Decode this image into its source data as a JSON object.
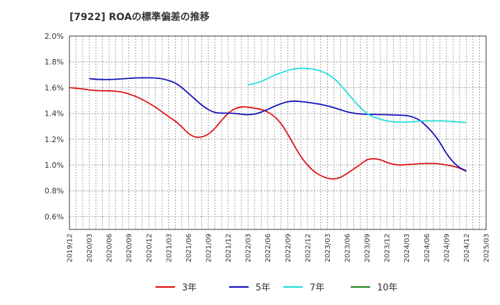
{
  "chart_data": {
    "type": "line",
    "title": "[7922]  ROAの標準偏差の推移",
    "xlabel": "",
    "ylabel": "",
    "ylim": [
      0.5,
      2.0
    ],
    "y_ticks": [
      "2.0%",
      "1.8%",
      "1.6%",
      "1.4%",
      "1.2%",
      "1.0%",
      "0.8%",
      "0.6%"
    ],
    "x_ticks": [
      "2019/12",
      "2020/03",
      "2020/06",
      "2020/09",
      "2020/12",
      "2021/03",
      "2021/06",
      "2021/09",
      "2021/12",
      "2022/03",
      "2022/06",
      "2022/09",
      "2022/12",
      "2023/03",
      "2023/06",
      "2023/09",
      "2023/12",
      "2024/03",
      "2024/06",
      "2024/09",
      "2024/12",
      "2025/03"
    ],
    "grid": true,
    "legend_position": "bottom",
    "series": [
      {
        "name": "3年",
        "color": "#dd1111",
        "points": [
          [
            "2019/12",
            1.6
          ],
          [
            "2020/01",
            1.595
          ],
          [
            "2020/02",
            1.59
          ],
          [
            "2020/03",
            1.582
          ],
          [
            "2020/04",
            1.578
          ],
          [
            "2020/05",
            1.576
          ],
          [
            "2020/06",
            1.575
          ],
          [
            "2020/07",
            1.572
          ],
          [
            "2020/08",
            1.565
          ],
          [
            "2020/09",
            1.55
          ],
          [
            "2020/10",
            1.532
          ],
          [
            "2020/11",
            1.508
          ],
          [
            "2020/12",
            1.48
          ],
          [
            "2021/01",
            1.448
          ],
          [
            "2021/02",
            1.412
          ],
          [
            "2021/03",
            1.375
          ],
          [
            "2021/04",
            1.34
          ],
          [
            "2021/05",
            1.295
          ],
          [
            "2021/06",
            1.245
          ],
          [
            "2021/07",
            1.218
          ],
          [
            "2021/08",
            1.218
          ],
          [
            "2021/09",
            1.24
          ],
          [
            "2021/10",
            1.285
          ],
          [
            "2021/11",
            1.345
          ],
          [
            "2021/12",
            1.4
          ],
          [
            "2022/01",
            1.435
          ],
          [
            "2022/02",
            1.45
          ],
          [
            "2022/03",
            1.448
          ],
          [
            "2022/04",
            1.44
          ],
          [
            "2022/05",
            1.43
          ],
          [
            "2022/06",
            1.41
          ],
          [
            "2022/07",
            1.375
          ],
          [
            "2022/08",
            1.32
          ],
          [
            "2022/09",
            1.24
          ],
          [
            "2022/10",
            1.15
          ],
          [
            "2022/11",
            1.065
          ],
          [
            "2022/12",
            1.0
          ],
          [
            "2023/01",
            0.95
          ],
          [
            "2023/02",
            0.918
          ],
          [
            "2023/03",
            0.898
          ],
          [
            "2023/04",
            0.892
          ],
          [
            "2023/05",
            0.905
          ],
          [
            "2023/06",
            0.935
          ],
          [
            "2023/07",
            0.97
          ],
          [
            "2023/08",
            1.005
          ],
          [
            "2023/09",
            1.04
          ],
          [
            "2023/10",
            1.048
          ],
          [
            "2023/11",
            1.04
          ],
          [
            "2023/12",
            1.02
          ],
          [
            "2024/01",
            1.005
          ],
          [
            "2024/02",
            1.0
          ],
          [
            "2024/03",
            1.003
          ],
          [
            "2024/04",
            1.006
          ],
          [
            "2024/05",
            1.01
          ],
          [
            "2024/06",
            1.012
          ],
          [
            "2024/07",
            1.012
          ],
          [
            "2024/08",
            1.008
          ],
          [
            "2024/09",
            1.0
          ],
          [
            "2024/10",
            0.99
          ],
          [
            "2024/11",
            0.975
          ],
          [
            "2024/12",
            0.95
          ]
        ]
      },
      {
        "name": "5年",
        "color": "#1111bb",
        "points": [
          [
            "2020/03",
            1.67
          ],
          [
            "2020/04",
            1.665
          ],
          [
            "2020/05",
            1.663
          ],
          [
            "2020/06",
            1.663
          ],
          [
            "2020/07",
            1.665
          ],
          [
            "2020/08",
            1.668
          ],
          [
            "2020/09",
            1.672
          ],
          [
            "2020/10",
            1.675
          ],
          [
            "2020/11",
            1.676
          ],
          [
            "2020/12",
            1.676
          ],
          [
            "2021/01",
            1.674
          ],
          [
            "2021/02",
            1.668
          ],
          [
            "2021/03",
            1.655
          ],
          [
            "2021/04",
            1.635
          ],
          [
            "2021/05",
            1.6
          ],
          [
            "2021/06",
            1.555
          ],
          [
            "2021/07",
            1.51
          ],
          [
            "2021/08",
            1.465
          ],
          [
            "2021/09",
            1.43
          ],
          [
            "2021/10",
            1.408
          ],
          [
            "2021/11",
            1.402
          ],
          [
            "2021/12",
            1.402
          ],
          [
            "2022/01",
            1.4
          ],
          [
            "2022/02",
            1.394
          ],
          [
            "2022/03",
            1.39
          ],
          [
            "2022/04",
            1.395
          ],
          [
            "2022/05",
            1.41
          ],
          [
            "2022/06",
            1.432
          ],
          [
            "2022/07",
            1.455
          ],
          [
            "2022/08",
            1.475
          ],
          [
            "2022/09",
            1.49
          ],
          [
            "2022/10",
            1.495
          ],
          [
            "2022/11",
            1.492
          ],
          [
            "2022/12",
            1.486
          ],
          [
            "2023/01",
            1.478
          ],
          [
            "2023/02",
            1.47
          ],
          [
            "2023/03",
            1.458
          ],
          [
            "2023/04",
            1.444
          ],
          [
            "2023/05",
            1.428
          ],
          [
            "2023/06",
            1.412
          ],
          [
            "2023/07",
            1.402
          ],
          [
            "2023/08",
            1.396
          ],
          [
            "2023/09",
            1.393
          ],
          [
            "2023/10",
            1.392
          ],
          [
            "2023/11",
            1.391
          ],
          [
            "2023/12",
            1.39
          ],
          [
            "2024/01",
            1.388
          ],
          [
            "2024/02",
            1.386
          ],
          [
            "2024/03",
            1.383
          ],
          [
            "2024/04",
            1.37
          ],
          [
            "2024/05",
            1.345
          ],
          [
            "2024/06",
            1.3
          ],
          [
            "2024/07",
            1.245
          ],
          [
            "2024/08",
            1.175
          ],
          [
            "2024/09",
            1.09
          ],
          [
            "2024/10",
            1.025
          ],
          [
            "2024/11",
            0.98
          ],
          [
            "2024/12",
            0.955
          ]
        ]
      },
      {
        "name": "7年",
        "color": "#22dddd",
        "points": [
          [
            "2022/03",
            1.62
          ],
          [
            "2022/04",
            1.632
          ],
          [
            "2022/05",
            1.648
          ],
          [
            "2022/06",
            1.672
          ],
          [
            "2022/07",
            1.695
          ],
          [
            "2022/08",
            1.715
          ],
          [
            "2022/09",
            1.733
          ],
          [
            "2022/10",
            1.745
          ],
          [
            "2022/11",
            1.75
          ],
          [
            "2022/12",
            1.748
          ],
          [
            "2023/01",
            1.742
          ],
          [
            "2023/02",
            1.728
          ],
          [
            "2023/03",
            1.705
          ],
          [
            "2023/04",
            1.67
          ],
          [
            "2023/05",
            1.62
          ],
          [
            "2023/06",
            1.56
          ],
          [
            "2023/07",
            1.5
          ],
          [
            "2023/08",
            1.445
          ],
          [
            "2023/09",
            1.4
          ],
          [
            "2023/10",
            1.372
          ],
          [
            "2023/11",
            1.355
          ],
          [
            "2023/12",
            1.342
          ],
          [
            "2024/01",
            1.335
          ],
          [
            "2024/02",
            1.332
          ],
          [
            "2024/03",
            1.333
          ],
          [
            "2024/04",
            1.336
          ],
          [
            "2024/05",
            1.34
          ],
          [
            "2024/06",
            1.342
          ],
          [
            "2024/07",
            1.342
          ],
          [
            "2024/08",
            1.342
          ],
          [
            "2024/09",
            1.34
          ],
          [
            "2024/10",
            1.337
          ],
          [
            "2024/11",
            1.333
          ],
          [
            "2024/12",
            1.33
          ]
        ]
      },
      {
        "name": "10年",
        "color": "#228822",
        "points": []
      }
    ]
  }
}
